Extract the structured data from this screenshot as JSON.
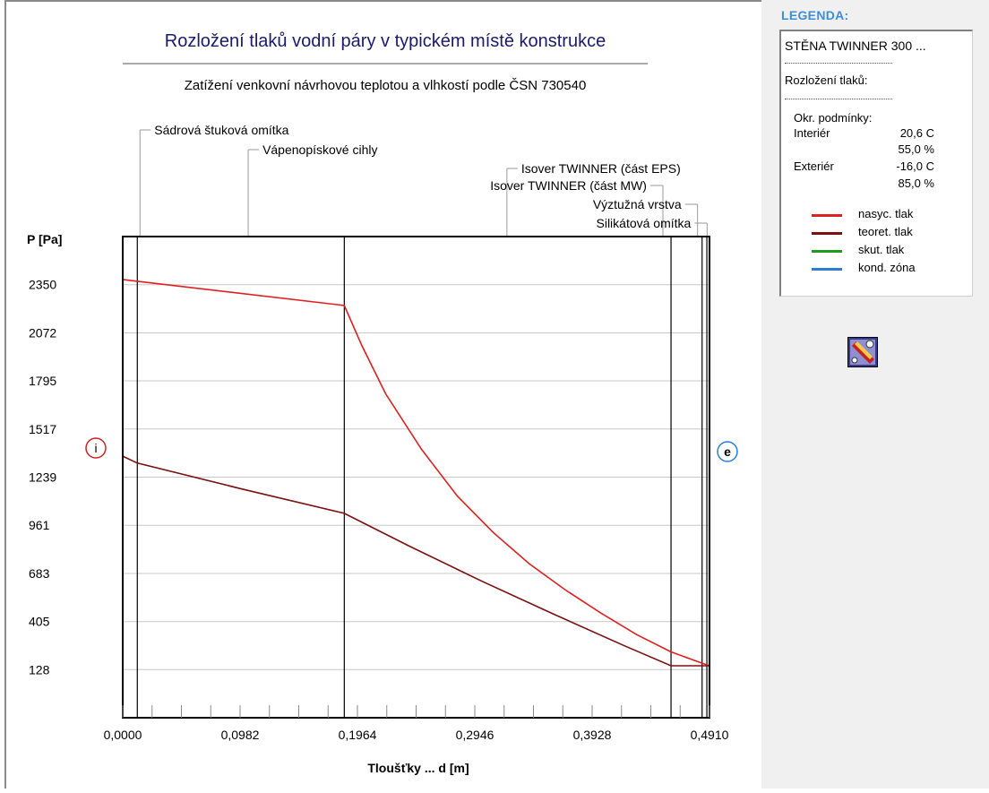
{
  "chart_data": {
    "type": "line",
    "title": "Rozložení tlaků vodní páry v typickém místě konstrukce",
    "subtitle": "Zatížení venkovní návrhovou teplotou a vlhkostí podle ČSN 730540",
    "xlabel": "Tloušťky ... d [m]",
    "ylabel": "P [Pa]",
    "x_ticks": [
      "0,0000",
      "0,0982",
      "0,1964",
      "0,2946",
      "0,3928",
      "0,4910"
    ],
    "y_ticks": [
      "128",
      "405",
      "683",
      "961",
      "1239",
      "1517",
      "1795",
      "2072",
      "2350"
    ],
    "xlim": [
      0,
      0.491
    ],
    "ylim": [
      -150,
      2628
    ],
    "grid": true,
    "interior_marker": "i",
    "exterior_marker": "e",
    "layer_boundaries": [
      0.0122,
      0.1854,
      0.4588,
      0.4848,
      0.4888
    ],
    "layers": [
      {
        "name": "Sádrová štuková omítka"
      },
      {
        "name": "Vápenopískové cihly"
      },
      {
        "name": "Isover TWINNER (část EPS)"
      },
      {
        "name": "Isover TWINNER (část MW)"
      },
      {
        "name": "Výztužná vrstva"
      },
      {
        "name": "Silikátová omítka"
      }
    ],
    "series": [
      {
        "name": "nasyc. tlak",
        "color": "#dd2020",
        "x": [
          0,
          0.0122,
          0.1854,
          0.2,
          0.22,
          0.25,
          0.28,
          0.31,
          0.34,
          0.37,
          0.4,
          0.43,
          0.4588,
          0.4848,
          0.491
        ],
        "y": [
          2380,
          2370,
          2230,
          2000,
          1720,
          1400,
          1130,
          920,
          740,
          590,
          455,
          330,
          230,
          165,
          150
        ]
      },
      {
        "name": "teoret. tlak",
        "color": "#7a1010",
        "x": [
          0,
          0.0122,
          0.1,
          0.1854,
          0.24,
          0.3,
          0.36,
          0.42,
          0.4588,
          0.4848,
          0.491
        ],
        "y": [
          1360,
          1320,
          1170,
          1030,
          840,
          640,
          450,
          265,
          150,
          150,
          150
        ]
      },
      {
        "name": "skut. tlak",
        "color": "#1f9a1f",
        "x": [],
        "y": []
      },
      {
        "name": "kond. zóna",
        "color": "#2a7fcf",
        "x": [],
        "y": []
      }
    ]
  },
  "legend": {
    "heading": "LEGENDA:",
    "construction": "STĚNA TWINNER 300 ...",
    "dots": "------------------------",
    "section": "Rozložení tlaků:",
    "conditions": "Okr. podmínky:",
    "interior_label": "Interiér",
    "interior_temp": "20,6 C",
    "interior_rh": "55,0 %",
    "exterior_label": "Exteriér",
    "exterior_temp": "-16,0 C",
    "exterior_rh": "85,0 %",
    "items": [
      {
        "label": "nasyc. tlak",
        "color": "#dd2020"
      },
      {
        "label": "teoret. tlak",
        "color": "#7a1010"
      },
      {
        "label": "skut. tlak",
        "color": "#1f9a1f"
      },
      {
        "label": "kond. zóna",
        "color": "#2a7fcf"
      }
    ]
  },
  "toolbar": {
    "tool_icon": "chart-settings-icon"
  }
}
